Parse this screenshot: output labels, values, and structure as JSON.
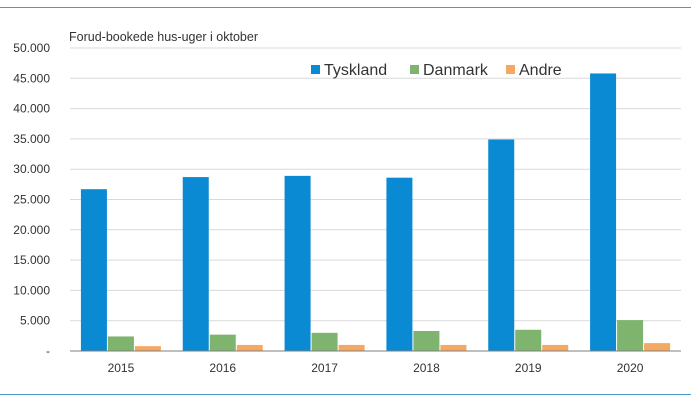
{
  "chart_data": {
    "type": "bar",
    "title": "",
    "ylabel": "Forud-bookede hus-uger i oktober",
    "xlabel": "",
    "categories": [
      "2015",
      "2016",
      "2017",
      "2018",
      "2019",
      "2020"
    ],
    "series": [
      {
        "name": "Tyskland",
        "color": "#0a8ad2",
        "values": [
          26700,
          28700,
          28900,
          28600,
          34900,
          45800
        ]
      },
      {
        "name": "Danmark",
        "color": "#7fb46e",
        "values": [
          2400,
          2700,
          3000,
          3300,
          3500,
          5100
        ]
      },
      {
        "name": "Andre",
        "color": "#f5a862",
        "values": [
          800,
          1000,
          1000,
          1000,
          1000,
          1300
        ]
      }
    ],
    "ylim": [
      0,
      50000
    ],
    "yticks": [
      0,
      5000,
      10000,
      15000,
      20000,
      25000,
      30000,
      35000,
      40000,
      45000,
      50000
    ],
    "ytick_labels": [
      "-",
      "5.000",
      "10.000",
      "15.000",
      "20.000",
      "25.000",
      "30.000",
      "35.000",
      "40.000",
      "45.000",
      "50.000"
    ],
    "grid": "horizontal",
    "legend_position": "top-right"
  }
}
